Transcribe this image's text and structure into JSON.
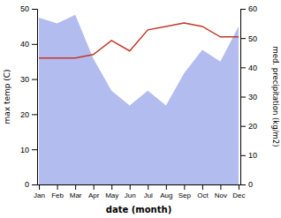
{
  "chart_data": {
    "type": "line",
    "xlabel": "date (month)",
    "ylabel": "max temp (C)",
    "y2label": "med. precipitation (kg/m2)",
    "categories": [
      "Jan",
      "Feb",
      "Mar",
      "Apr",
      "May",
      "Jun",
      "Jul",
      "Aug",
      "Sep",
      "Oct",
      "Nov",
      "Dec"
    ],
    "series": [
      {
        "type": "area",
        "axis": "y2",
        "color": "#b3bcef",
        "values": [
          57,
          55,
          58,
          43,
          32,
          27,
          32,
          27,
          38,
          46,
          42,
          54
        ]
      },
      {
        "type": "line",
        "color": "#c0392b",
        "values": [
          36,
          36,
          36,
          37,
          41,
          38,
          44,
          45,
          46,
          45,
          42,
          42
        ]
      }
    ],
    "ylim": [
      0,
      50
    ],
    "yticks": [
      0,
      10,
      20,
      30,
      40,
      50
    ],
    "y2lim": [
      0,
      60
    ],
    "y2ticks": [
      0,
      10,
      20,
      30,
      40,
      50,
      60
    ]
  }
}
